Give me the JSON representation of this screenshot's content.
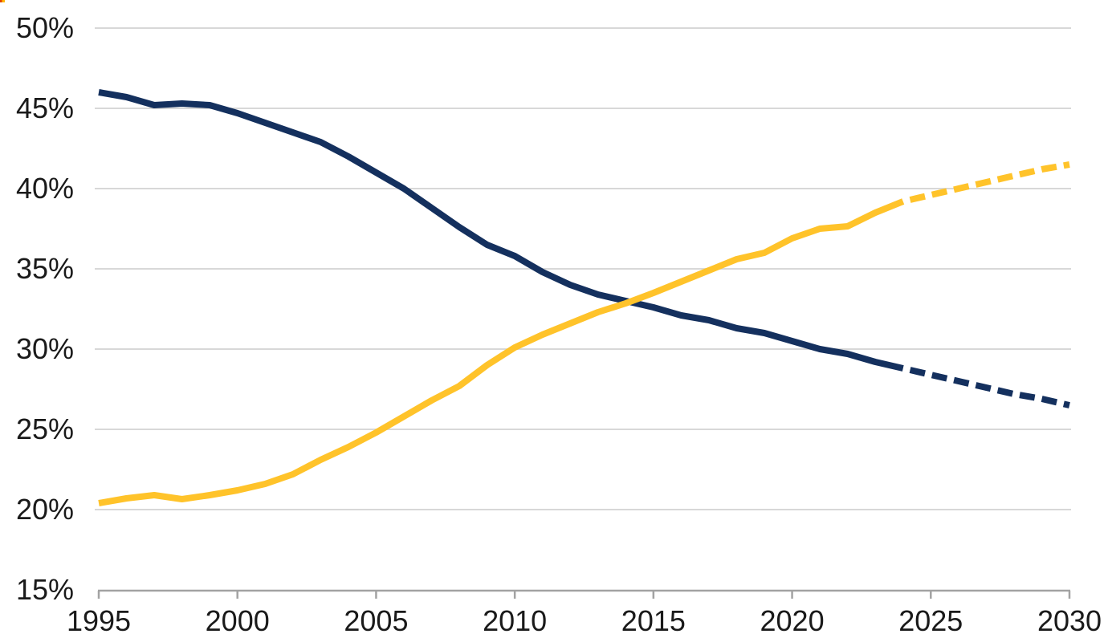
{
  "decorations": {
    "corner_artifact": {
      "colors": [
        "#E04000",
        "#FFB600"
      ]
    }
  },
  "chart_data": {
    "type": "line",
    "title": "",
    "xlabel": "",
    "ylabel": "",
    "xlim": [
      1995,
      2030
    ],
    "ylim": [
      15,
      50
    ],
    "grid": "horizontal",
    "legend": "none",
    "colors": {
      "gridline": "#D8D8D8",
      "axis_line": "#A3A3A3",
      "tick_text": "#1A1A1A",
      "navy": "#14305E",
      "yellow": "#FFC32A"
    },
    "x_ticks": [
      1995,
      2000,
      2005,
      2010,
      2015,
      2020,
      2025,
      2030
    ],
    "x_tick_labels": [
      "1995",
      "2000",
      "2005",
      "2010",
      "2015",
      "2020",
      "2025",
      "2030"
    ],
    "y_ticks": [
      15,
      20,
      25,
      30,
      35,
      40,
      45,
      50
    ],
    "y_tick_labels": [
      "15%",
      "20%",
      "25%",
      "30%",
      "35%",
      "40%",
      "45%",
      "50%"
    ],
    "series": [
      {
        "name": "navy",
        "color": "#14305E",
        "line_width": 8,
        "style": "solid",
        "years": [
          1995,
          1996,
          1997,
          1998,
          1999,
          2000,
          2001,
          2002,
          2003,
          2004,
          2005,
          2006,
          2007,
          2008,
          2009,
          2010,
          2011,
          2012,
          2013,
          2014,
          2015,
          2016,
          2017,
          2018,
          2019,
          2020,
          2021,
          2022,
          2023,
          2024
        ],
        "values": [
          46.0,
          45.7,
          45.2,
          45.3,
          45.2,
          44.7,
          44.1,
          43.5,
          42.9,
          42.0,
          41.0,
          40.0,
          38.8,
          37.6,
          36.5,
          35.8,
          34.8,
          34.0,
          33.4,
          33.0,
          32.6,
          32.1,
          31.8,
          31.3,
          31.0,
          30.5,
          30.0,
          29.7,
          29.2,
          28.8
        ],
        "projection_style": "dashed",
        "projection_years": [
          2024,
          2025,
          2026,
          2027,
          2028,
          2029,
          2030
        ],
        "projection_values": [
          28.8,
          28.4,
          28.0,
          27.6,
          27.2,
          26.9,
          26.5
        ]
      },
      {
        "name": "yellow",
        "color": "#FFC32A",
        "line_width": 8,
        "style": "solid",
        "years": [
          1995,
          1996,
          1997,
          1998,
          1999,
          2000,
          2001,
          2002,
          2003,
          2004,
          2005,
          2006,
          2007,
          2008,
          2009,
          2010,
          2011,
          2012,
          2013,
          2014,
          2015,
          2016,
          2017,
          2018,
          2019,
          2020,
          2021,
          2022,
          2023,
          2024
        ],
        "values": [
          20.4,
          20.7,
          20.9,
          20.65,
          20.9,
          21.2,
          21.6,
          22.2,
          23.1,
          23.9,
          24.8,
          25.8,
          26.8,
          27.7,
          29.0,
          30.1,
          30.9,
          31.6,
          32.3,
          32.85,
          33.5,
          34.2,
          34.9,
          35.6,
          36.0,
          36.9,
          37.5,
          37.65,
          38.5,
          39.2
        ],
        "projection_style": "dashed",
        "projection_years": [
          2024,
          2025,
          2026,
          2027,
          2028,
          2029,
          2030
        ],
        "projection_values": [
          39.2,
          39.6,
          40.0,
          40.4,
          40.8,
          41.2,
          41.5
        ]
      }
    ]
  }
}
